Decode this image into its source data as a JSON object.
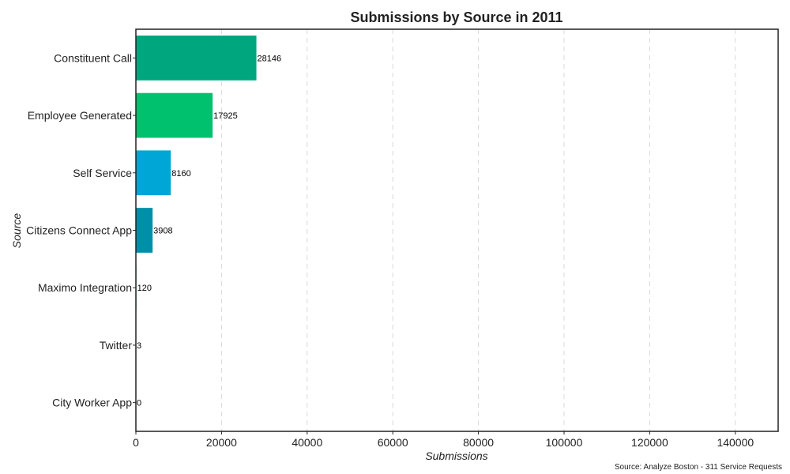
{
  "chart_data": {
    "type": "bar",
    "orientation": "horizontal",
    "title": "Submissions by Source in 2011",
    "xlabel": "Submissions",
    "ylabel": "Source",
    "xlim": [
      0,
      150000
    ],
    "xticks": [
      0,
      20000,
      40000,
      60000,
      80000,
      100000,
      120000,
      140000
    ],
    "grid": {
      "x": true,
      "style": "dashed"
    },
    "categories": [
      "Constituent Call",
      "Employee Generated",
      "Self Service",
      "Citizens Connect App",
      "Maximo Integration",
      "Twitter",
      "City Worker App"
    ],
    "values": [
      28146,
      17925,
      8160,
      3908,
      120,
      3,
      0
    ],
    "colors": [
      "#00a67e",
      "#00c16e",
      "#00a6d6",
      "#008fa8",
      "#00a67e",
      "#00a67e",
      "#00a67e"
    ],
    "data_labels": [
      "28146",
      "17925",
      "8160",
      "3908",
      "120",
      "3",
      "0"
    ],
    "source_note": "Source: Analyze Boston - 311 Service Requests"
  }
}
